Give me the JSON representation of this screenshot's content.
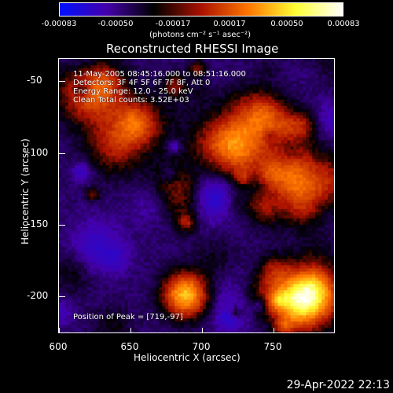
{
  "colorbar": {
    "ticks": [
      "-0.00083",
      "-0.00050",
      "-0.00017",
      "0.00017",
      "0.00050",
      "0.00083"
    ],
    "unit_label": "(photons cm⁻² s⁻¹ asec⁻²)",
    "colors": [
      "#0011ff",
      "#4400aa",
      "#000000",
      "#aa1100",
      "#ff7700",
      "#ffff33",
      "#ffffff"
    ]
  },
  "plot": {
    "title": "Reconstructed RHESSI Image",
    "annotations": {
      "time_range": "11-May-2005 08:45:16.000 to 08:51:16.000",
      "detectors": "Detectors: 3F 4F 5F 6F 7F 8F, Att 0",
      "energy_range": "Energy Range: 12.0 - 25.0 keV",
      "clean": "Clean    Total counts: 3.52E+03",
      "peak": "Position of Peak = [719,-97]"
    },
    "y_axis": {
      "label": "Heliocentric Y (arcsec)",
      "ticks": [
        "-50",
        "-100",
        "-150",
        "-200"
      ]
    },
    "x_axis": {
      "label": "Heliocentric X (arcsec)",
      "ticks": [
        "600",
        "650",
        "700",
        "750"
      ]
    }
  },
  "timestamp": "29-Apr-2022 22:13"
}
